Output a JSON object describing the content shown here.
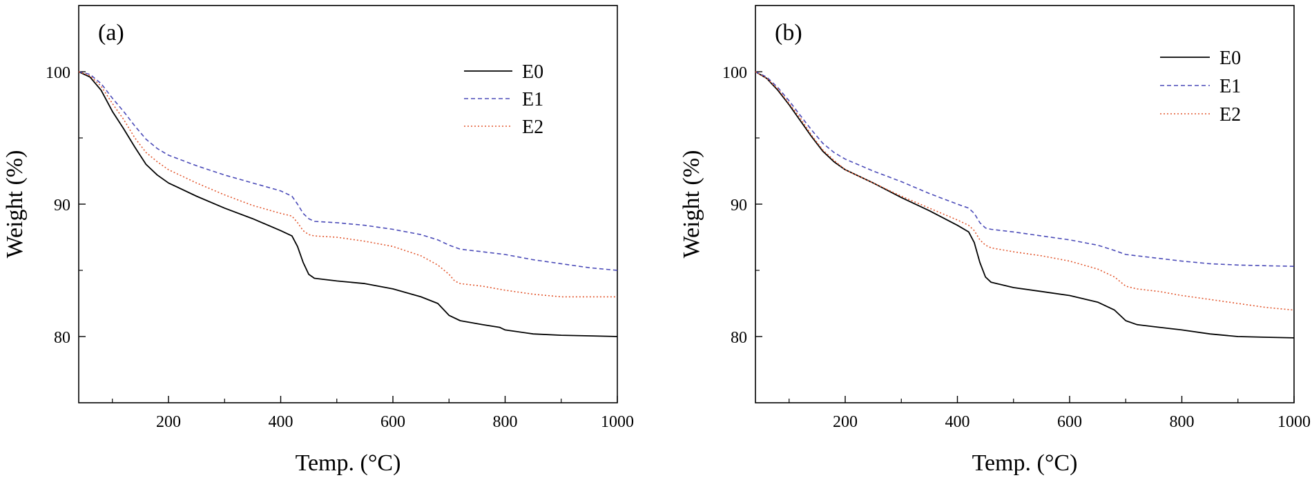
{
  "chart_data": [
    {
      "type": "line",
      "panel_label": "(a)",
      "xlabel": "Temp. (°C)",
      "ylabel": "Weight (%)",
      "xlim": [
        40,
        1000
      ],
      "ylim": [
        75,
        105
      ],
      "xticks": [
        200,
        400,
        600,
        800,
        1000
      ],
      "xticks_minor": [
        100,
        300,
        500,
        700,
        900
      ],
      "yticks": [
        80,
        90,
        100
      ],
      "yticks_minor": [
        85,
        95
      ],
      "legend_position": "top-right",
      "series": [
        {
          "name": "E0",
          "color": "#000000",
          "dash": "solid",
          "x": [
            40,
            60,
            80,
            100,
            120,
            140,
            160,
            180,
            200,
            250,
            300,
            350,
            400,
            420,
            430,
            440,
            450,
            460,
            500,
            550,
            600,
            650,
            680,
            700,
            720,
            760,
            790,
            800,
            850,
            900,
            950,
            1000
          ],
          "y": [
            100,
            99.6,
            98.6,
            97.0,
            95.7,
            94.3,
            93.0,
            92.2,
            91.6,
            90.6,
            89.7,
            88.9,
            88.0,
            87.6,
            86.8,
            85.6,
            84.7,
            84.4,
            84.2,
            84.0,
            83.6,
            83.0,
            82.5,
            81.6,
            81.2,
            80.9,
            80.7,
            80.5,
            80.2,
            80.1,
            80.05,
            80.0
          ]
        },
        {
          "name": "E1",
          "color": "#4a4ab8",
          "dash": "6,4",
          "x": [
            40,
            60,
            80,
            100,
            120,
            140,
            160,
            180,
            200,
            250,
            300,
            350,
            400,
            420,
            430,
            440,
            450,
            460,
            500,
            550,
            600,
            650,
            680,
            700,
            720,
            760,
            800,
            850,
            900,
            950,
            1000
          ],
          "y": [
            100,
            99.8,
            99.1,
            98.0,
            97.0,
            95.9,
            94.9,
            94.2,
            93.7,
            92.9,
            92.2,
            91.6,
            91.0,
            90.6,
            90.0,
            89.3,
            88.9,
            88.7,
            88.6,
            88.4,
            88.1,
            87.7,
            87.3,
            86.9,
            86.6,
            86.4,
            86.2,
            85.8,
            85.5,
            85.2,
            85.0
          ]
        },
        {
          "name": "E2",
          "color": "#e2552c",
          "dash": "2,3",
          "x": [
            40,
            60,
            80,
            100,
            120,
            140,
            160,
            180,
            200,
            250,
            300,
            350,
            400,
            420,
            430,
            440,
            450,
            460,
            500,
            550,
            600,
            650,
            680,
            700,
            710,
            720,
            760,
            800,
            850,
            900,
            950,
            1000
          ],
          "y": [
            100,
            99.7,
            98.9,
            97.6,
            96.4,
            95.0,
            93.9,
            93.2,
            92.6,
            91.6,
            90.7,
            89.9,
            89.3,
            89.1,
            88.6,
            88.0,
            87.7,
            87.6,
            87.5,
            87.2,
            86.8,
            86.1,
            85.4,
            84.7,
            84.2,
            84.0,
            83.8,
            83.5,
            83.2,
            83.0,
            83.0,
            83.0
          ]
        }
      ]
    },
    {
      "type": "line",
      "panel_label": "(b)",
      "xlabel": "Temp. (°C)",
      "ylabel": "Weight (%)",
      "xlim": [
        40,
        1000
      ],
      "ylim": [
        75,
        105
      ],
      "xticks": [
        200,
        400,
        600,
        800,
        1000
      ],
      "xticks_minor": [
        100,
        300,
        500,
        700,
        900
      ],
      "yticks": [
        80,
        90,
        100
      ],
      "yticks_minor": [
        85,
        95
      ],
      "legend_position": "top-right",
      "series": [
        {
          "name": "E0",
          "color": "#000000",
          "dash": "solid",
          "x": [
            40,
            60,
            80,
            100,
            120,
            140,
            160,
            180,
            200,
            250,
            300,
            350,
            400,
            420,
            430,
            440,
            450,
            460,
            500,
            550,
            600,
            650,
            680,
            700,
            720,
            760,
            800,
            850,
            900,
            950,
            1000
          ],
          "y": [
            100,
            99.5,
            98.6,
            97.5,
            96.3,
            95.1,
            94.0,
            93.2,
            92.6,
            91.6,
            90.5,
            89.5,
            88.4,
            87.9,
            87.1,
            85.6,
            84.5,
            84.1,
            83.7,
            83.4,
            83.1,
            82.6,
            82.0,
            81.2,
            80.9,
            80.7,
            80.5,
            80.2,
            80.0,
            79.95,
            79.9
          ]
        },
        {
          "name": "E1",
          "color": "#4a4ab8",
          "dash": "6,4",
          "x": [
            40,
            60,
            80,
            100,
            120,
            140,
            160,
            180,
            200,
            250,
            300,
            350,
            400,
            420,
            430,
            440,
            450,
            460,
            500,
            550,
            600,
            650,
            680,
            700,
            720,
            760,
            800,
            850,
            900,
            950,
            1000
          ],
          "y": [
            100,
            99.6,
            98.8,
            97.8,
            96.7,
            95.6,
            94.6,
            93.9,
            93.4,
            92.5,
            91.7,
            90.8,
            90.0,
            89.7,
            89.3,
            88.6,
            88.2,
            88.1,
            87.9,
            87.6,
            87.3,
            86.9,
            86.5,
            86.2,
            86.1,
            85.9,
            85.7,
            85.5,
            85.4,
            85.35,
            85.3
          ]
        },
        {
          "name": "E2",
          "color": "#e2552c",
          "dash": "2,3",
          "x": [
            40,
            60,
            80,
            100,
            120,
            140,
            160,
            180,
            200,
            250,
            300,
            350,
            400,
            420,
            430,
            440,
            450,
            460,
            500,
            550,
            600,
            650,
            680,
            700,
            720,
            760,
            800,
            850,
            900,
            950,
            1000
          ],
          "y": [
            100,
            99.5,
            98.7,
            97.6,
            96.5,
            95.2,
            94.1,
            93.3,
            92.6,
            91.6,
            90.6,
            89.7,
            88.8,
            88.4,
            88.0,
            87.3,
            86.9,
            86.7,
            86.4,
            86.1,
            85.7,
            85.1,
            84.5,
            83.8,
            83.6,
            83.4,
            83.1,
            82.8,
            82.5,
            82.2,
            82.0
          ]
        }
      ]
    }
  ]
}
